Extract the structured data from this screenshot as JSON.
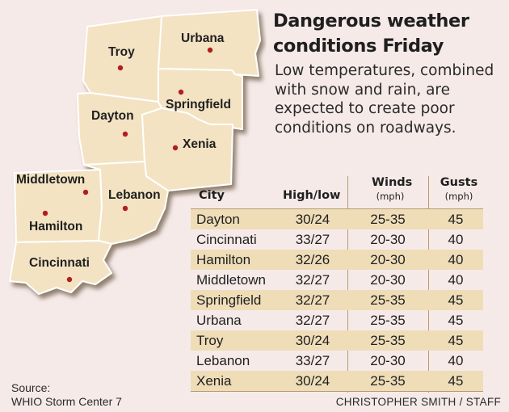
{
  "title": "Dangerous weather conditions Friday",
  "description": "Low temperatures, combined with snow and rain, are expected to create poor conditions on roadways.",
  "map": {
    "counties": [
      {
        "id": "troy",
        "label": "Troy"
      },
      {
        "id": "urbana",
        "label": "Urbana"
      },
      {
        "id": "dayton",
        "label": "Dayton"
      },
      {
        "id": "springfield",
        "label": "Springfield"
      },
      {
        "id": "xenia",
        "label": "Xenia"
      },
      {
        "id": "middletown",
        "label": "Middletown"
      },
      {
        "id": "lebanon",
        "label": "Lebanon"
      },
      {
        "id": "hamilton",
        "label": "Hamilton"
      },
      {
        "id": "cincinnati",
        "label": "Cincinnati"
      }
    ],
    "county_fill": "#f3e3c3",
    "county_stroke": "#ffffff",
    "shadow": "#7b6a52",
    "city_dot": "#b11e1e"
  },
  "table": {
    "headers": {
      "city": "City",
      "highlow": "High/low",
      "winds": "Winds",
      "winds_unit": "(mph)",
      "gusts": "Gusts",
      "gusts_unit": "(mph)"
    },
    "rows": [
      {
        "city": "Dayton",
        "highlow": "30/24",
        "winds": "25-35",
        "gusts": "45"
      },
      {
        "city": "Cincinnati",
        "highlow": "33/27",
        "winds": "20-30",
        "gusts": "40"
      },
      {
        "city": "Hamilton",
        "highlow": "32/26",
        "winds": "20-30",
        "gusts": "40"
      },
      {
        "city": "Middletown",
        "highlow": "32/27",
        "winds": "20-30",
        "gusts": "40"
      },
      {
        "city": "Springfield",
        "highlow": "32/27",
        "winds": "25-35",
        "gusts": "45"
      },
      {
        "city": "Urbana",
        "highlow": "32/27",
        "winds": "25-35",
        "gusts": "45"
      },
      {
        "city": "Troy",
        "highlow": "30/24",
        "winds": "25-35",
        "gusts": "45"
      },
      {
        "city": "Lebanon",
        "highlow": "33/27",
        "winds": "20-30",
        "gusts": "40"
      },
      {
        "city": "Xenia",
        "highlow": "30/24",
        "winds": "25-35",
        "gusts": "45"
      }
    ],
    "shade_color": "#efddb8",
    "rule_color": "#b79b73"
  },
  "source_label": "Source:",
  "source_name": "WHIO Storm Center 7",
  "credit": "CHRISTOPHER SMITH / STAFF"
}
